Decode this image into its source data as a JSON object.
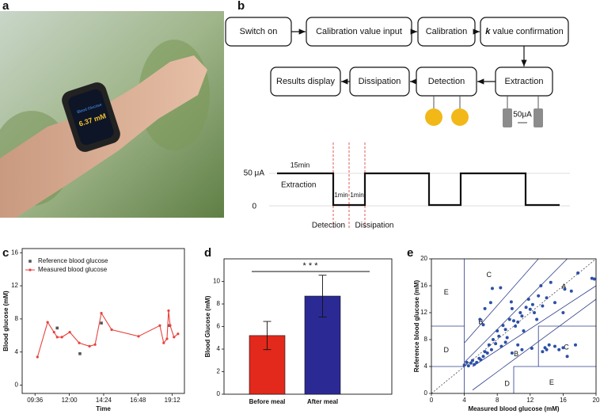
{
  "panels": {
    "a": {
      "label": "a",
      "watch_title": "Blood Glucose",
      "watch_value": "6.37 mM"
    },
    "b": {
      "label": "b",
      "steps": [
        {
          "text": "Switch on"
        },
        {
          "text": "Calibration value input"
        },
        {
          "text": "Calibration"
        },
        {
          "emphasis": "k",
          "text": "value confirmation"
        },
        {
          "text": "Extraction"
        },
        {
          "text": "Detection"
        },
        {
          "text": "Dissipation"
        },
        {
          "text": "Results display"
        }
      ],
      "electrode_current": "50μA",
      "waveform": {
        "high_label": "50 μA",
        "low_label": "0",
        "duration_label": "15min",
        "phase_label": "Extraction",
        "detection_time": "1min",
        "dissipation_time": "1min",
        "detection_label": "Detection",
        "dissipation_label": "Dissipation"
      }
    }
  },
  "chart_data": [
    {
      "type": "line",
      "panel_label": "c",
      "xlabel": "Time",
      "ylabel": "Blood glucose (mM)",
      "xlim": [
        8.7,
        20.05
      ],
      "xticks": [
        {
          "value": 9.6,
          "label": "09:36"
        },
        {
          "value": 12,
          "label": "12:00"
        },
        {
          "value": 14.4,
          "label": "14:24"
        },
        {
          "value": 16.8,
          "label": "16:48"
        },
        {
          "value": 19.2,
          "label": "19:12"
        }
      ],
      "ylim": [
        -1,
        16.5
      ],
      "yticks": [
        0,
        4,
        8,
        12,
        16
      ],
      "series": [
        {
          "name": "Reference blood glucose",
          "color": "#555555",
          "marker": "square",
          "line": false,
          "x": [
            11.15,
            12.74,
            14.24,
            19.0
          ],
          "values": [
            6.9,
            3.8,
            7.5,
            7.2
          ]
        },
        {
          "name": "Measured blood glucose",
          "color": "#e8423c",
          "marker": "circle",
          "line": true,
          "x": [
            9.77,
            10.48,
            10.93,
            11.15,
            11.48,
            12.03,
            12.69,
            13.41,
            13.8,
            14.24,
            14.96,
            16.84,
            18.33,
            18.6,
            18.83,
            18.94,
            19.05,
            19.32,
            19.6
          ],
          "values": [
            3.4,
            7.6,
            6.4,
            5.8,
            5.8,
            6.4,
            5.1,
            4.7,
            4.9,
            8.7,
            6.7,
            5.9,
            7.2,
            5.1,
            5.6,
            9.0,
            7.2,
            5.8,
            6.2
          ]
        }
      ]
    },
    {
      "type": "bar",
      "panel_label": "d",
      "ylabel": "Blood Glucose (mM)",
      "categories": [
        "Before meal",
        "After meal"
      ],
      "values": [
        5.2,
        8.7
      ],
      "errors": [
        1.25,
        1.85
      ],
      "colors": [
        "#e2291c",
        "#2b2a94"
      ],
      "ylim": [
        0,
        12
      ],
      "yticks": [
        0,
        2,
        4,
        6,
        8,
        10
      ],
      "annotation": "* * *"
    },
    {
      "type": "scatter",
      "panel_label": "e",
      "xlabel": "Measured blood glucose (mM)",
      "ylabel": "Reference blood glucose (mM)",
      "xlim": [
        0,
        20
      ],
      "ylim": [
        0,
        20
      ],
      "xticks": [
        0,
        4,
        8,
        12,
        16,
        20
      ],
      "yticks": [
        0,
        4,
        8,
        12,
        16,
        20
      ],
      "color": "#2d4fa8",
      "zone_labels": [
        "E",
        "C",
        "A",
        "B",
        "D",
        "B",
        "C",
        "D",
        "E"
      ],
      "x": [
        4,
        4.3,
        4.5,
        4.8,
        5,
        5.2,
        5.5,
        5.8,
        6,
        6.3,
        6.5,
        6.8,
        7,
        7.3,
        7.5,
        7.8,
        8,
        8.2,
        8.5,
        8.7,
        9,
        9.2,
        9.5,
        9.8,
        10,
        10.2,
        10.5,
        10.8,
        11,
        11.2,
        11.5,
        11.8,
        12,
        12.3,
        12.5,
        12.8,
        13,
        13.3,
        13.5,
        14,
        7.4,
        6.5,
        7.2,
        8.4,
        9.7,
        5.9,
        6.3,
        13.5,
        13.8,
        14,
        14.3,
        15,
        16,
        16.5,
        17.5,
        15.5,
        11,
        10.5,
        9.8,
        9,
        12.2,
        17.8,
        19.5,
        19.8,
        17,
        16,
        15,
        14.5,
        16.2
      ],
      "values": [
        4.2,
        4.6,
        4.1,
        4.5,
        4.9,
        4.3,
        4.6,
        5.2,
        5,
        5.5,
        6.2,
        6,
        7.2,
        6.5,
        8,
        7.4,
        9.3,
        8.5,
        7,
        10.1,
        9.5,
        8.3,
        11,
        12.6,
        10.8,
        10,
        10.6,
        12,
        11.5,
        9.3,
        12.8,
        14,
        12.5,
        13.2,
        12,
        11,
        14.5,
        16,
        13,
        14.2,
        15.6,
        12.6,
        13.5,
        15.7,
        13.6,
        11,
        10.2,
        6.2,
        6.8,
        6.5,
        7.2,
        7,
        6.8,
        5.5,
        7.2,
        6.5,
        6.5,
        7.2,
        6,
        7.6,
        6.7,
        17.9,
        17.1,
        17,
        15.2,
        12,
        13.5,
        16.5,
        15.5
      ]
    }
  ]
}
